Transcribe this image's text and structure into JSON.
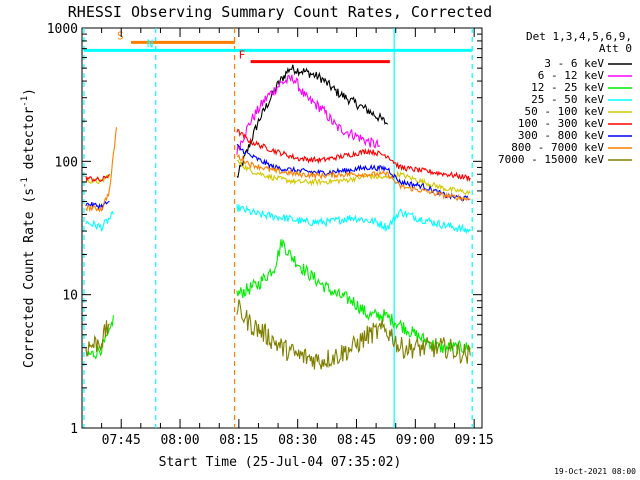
{
  "chart_data": {
    "type": "line",
    "title": "RHESSI Observing Summary Count Rates, Corrected",
    "xlabel": "Start Time (25-Jul-04 07:35:02)",
    "ylabel_main": "Corrected Count Rate (s",
    "ylabel_sup1": "-1",
    "ylabel_mid": " detector",
    "ylabel_sup2": "-1",
    "ylabel_end": ")",
    "y_scale": "log",
    "ylim": [
      1,
      1000
    ],
    "xlim_minutes": [
      7.0,
      101.0
    ],
    "x_ticks": [
      {
        "label": "07:45",
        "minute": 45
      },
      {
        "label": "08:00",
        "minute": 60
      },
      {
        "label": "08:15",
        "minute": 75
      },
      {
        "label": "08:30",
        "minute": 90
      },
      {
        "label": "08:45",
        "minute": 105
      },
      {
        "label": "09:00",
        "minute": 120
      },
      {
        "label": "09:15",
        "minute": 135
      }
    ],
    "x_origin_minute": 35.033,
    "y_ticks": [
      {
        "label": "1",
        "value": 1
      },
      {
        "label": "10",
        "value": 10
      },
      {
        "label": "100",
        "value": 100
      },
      {
        "label": "1000",
        "value": 1000
      }
    ],
    "legend": {
      "title_line1": "Det 1,3,4,5,6,9,",
      "title_line2": "Att 0",
      "placement": "outside-right",
      "entries": [
        {
          "label": "3 - 6 keV",
          "color": "#000000"
        },
        {
          "label": "6 - 12 keV",
          "color": "#ff00ff"
        },
        {
          "label": "12 - 25 keV",
          "color": "#00ee00"
        },
        {
          "label": "25 - 50 keV",
          "color": "#00ffff"
        },
        {
          "label": "50 - 100 keV",
          "color": "#d4c800"
        },
        {
          "label": "100 - 300 keV",
          "color": "#ff0000"
        },
        {
          "label": "300 - 800 keV",
          "color": "#0000ff"
        },
        {
          "label": "800 - 7000 keV",
          "color": "#ff8000"
        },
        {
          "label": "7000 - 15000 keV",
          "color": "#808000"
        }
      ]
    },
    "annotations": [
      {
        "label": "S",
        "color": "#ff8000",
        "x_start": 47.5,
        "x_end": 74.0,
        "y": 780
      },
      {
        "label": "N",
        "color": "#00ffff",
        "x_start": 35.5,
        "x_end": 134.5,
        "y": 680
      },
      {
        "label": "F",
        "color": "#ff0000",
        "x_start": 78.0,
        "x_end": 113.5,
        "y": 560
      }
    ],
    "vlines": [
      {
        "minute": 35.5,
        "color": "#00ffff",
        "style": "dashed"
      },
      {
        "minute": 53.8,
        "color": "#00ffff",
        "style": "dashed"
      },
      {
        "minute": 73.9,
        "color": "#ff8000",
        "style": "dashed"
      },
      {
        "minute": 114.6,
        "color": "#00ffff",
        "style": "solid"
      },
      {
        "minute": 134.5,
        "color": "#00ffff",
        "style": "dashed"
      }
    ],
    "series": [
      {
        "name": "3 - 6 keV",
        "color": "#000000",
        "noise": 0.035,
        "points": [
          [
            74.5,
            75
          ],
          [
            80,
            200
          ],
          [
            85,
            380
          ],
          [
            88,
            500
          ],
          [
            92,
            470
          ],
          [
            96,
            420
          ],
          [
            100,
            330
          ],
          [
            104,
            280
          ],
          [
            108,
            240
          ],
          [
            111,
            210
          ],
          [
            113,
            190
          ]
        ]
      },
      {
        "name": "6 - 12 keV",
        "color": "#ff00ff",
        "noise": 0.04,
        "points": [
          [
            74.5,
            120
          ],
          [
            78,
            200
          ],
          [
            82,
            300
          ],
          [
            86,
            390
          ],
          [
            89,
            420
          ],
          [
            92,
            300
          ],
          [
            96,
            250
          ],
          [
            100,
            180
          ],
          [
            104,
            160
          ],
          [
            108,
            140
          ],
          [
            111,
            130
          ]
        ]
      },
      {
        "name": "12 - 25 keV",
        "color": "#00ee00",
        "noise": 0.05,
        "points": [
          [
            36,
            3.5
          ],
          [
            38,
            3.6
          ],
          [
            40,
            4
          ],
          [
            42,
            5
          ],
          [
            43,
            7
          ],
          [
            74.5,
            10
          ],
          [
            80,
            12
          ],
          [
            84,
            16
          ],
          [
            86,
            25
          ],
          [
            88,
            20
          ],
          [
            92,
            15
          ],
          [
            96,
            12
          ],
          [
            100,
            10
          ],
          [
            104,
            9
          ],
          [
            108,
            7
          ],
          [
            112,
            7
          ],
          [
            116,
            6
          ],
          [
            120,
            5
          ],
          [
            126,
            4
          ],
          [
            134,
            4
          ]
        ]
      },
      {
        "name": "25 - 50 keV",
        "color": "#00ffff",
        "noise": 0.03,
        "points": [
          [
            36,
            35
          ],
          [
            40,
            32
          ],
          [
            43,
            40
          ],
          [
            74.5,
            45
          ],
          [
            80,
            40
          ],
          [
            86,
            38
          ],
          [
            92,
            35
          ],
          [
            98,
            35
          ],
          [
            104,
            38
          ],
          [
            110,
            35
          ],
          [
            113,
            32
          ],
          [
            116,
            42
          ],
          [
            120,
            38
          ],
          [
            126,
            34
          ],
          [
            134,
            30
          ]
        ]
      },
      {
        "name": "50 - 100 keV",
        "color": "#d4c800",
        "noise": 0.02,
        "points": [
          [
            36,
            72
          ],
          [
            40,
            70
          ],
          [
            42,
            80
          ],
          [
            74.5,
            100
          ],
          [
            78,
            85
          ],
          [
            84,
            75
          ],
          [
            90,
            70
          ],
          [
            96,
            70
          ],
          [
            102,
            72
          ],
          [
            108,
            78
          ],
          [
            112,
            75
          ],
          [
            116,
            80
          ],
          [
            122,
            70
          ],
          [
            128,
            62
          ],
          [
            134,
            58
          ]
        ]
      },
      {
        "name": "100 - 300 keV",
        "color": "#ff0000",
        "noise": 0.02,
        "points": [
          [
            36,
            75
          ],
          [
            40,
            72
          ],
          [
            42,
            80
          ],
          [
            74.5,
            170
          ],
          [
            78,
            140
          ],
          [
            84,
            120
          ],
          [
            90,
            105
          ],
          [
            96,
            102
          ],
          [
            102,
            110
          ],
          [
            108,
            120
          ],
          [
            113,
            110
          ],
          [
            116,
            90
          ],
          [
            122,
            85
          ],
          [
            128,
            80
          ],
          [
            134,
            75
          ]
        ]
      },
      {
        "name": "300 - 800 keV",
        "color": "#0000ff",
        "noise": 0.02,
        "points": [
          [
            36,
            48
          ],
          [
            40,
            46
          ],
          [
            42,
            50
          ],
          [
            74.5,
            130
          ],
          [
            78,
            110
          ],
          [
            84,
            90
          ],
          [
            90,
            85
          ],
          [
            96,
            82
          ],
          [
            102,
            85
          ],
          [
            108,
            90
          ],
          [
            113,
            88
          ],
          [
            116,
            70
          ],
          [
            122,
            65
          ],
          [
            128,
            55
          ],
          [
            134,
            52
          ]
        ]
      },
      {
        "name": "800 - 7000 keV",
        "color": "#ff8000",
        "noise": 0.02,
        "points": [
          [
            36,
            45
          ],
          [
            40,
            44
          ],
          [
            42,
            60
          ],
          [
            43.8,
            180
          ],
          [
            74.5,
            110
          ],
          [
            78,
            95
          ],
          [
            84,
            85
          ],
          [
            90,
            80
          ],
          [
            96,
            78
          ],
          [
            102,
            80
          ],
          [
            108,
            80
          ],
          [
            113,
            80
          ],
          [
            116,
            65
          ],
          [
            122,
            60
          ],
          [
            128,
            55
          ],
          [
            134,
            52
          ]
        ]
      },
      {
        "name": "7000 - 15000 keV",
        "color": "#808000",
        "noise": 0.08,
        "points": [
          [
            36,
            4
          ],
          [
            40,
            4.5
          ],
          [
            42,
            6
          ],
          [
            74.5,
            8
          ],
          [
            78,
            6
          ],
          [
            82,
            5
          ],
          [
            86,
            4
          ],
          [
            90,
            3.5
          ],
          [
            96,
            3.2
          ],
          [
            100,
            3.5
          ],
          [
            104,
            4
          ],
          [
            108,
            5
          ],
          [
            112,
            5.5
          ],
          [
            114,
            5
          ],
          [
            116,
            4
          ],
          [
            122,
            4
          ],
          [
            128,
            4
          ],
          [
            134,
            3.5
          ]
        ]
      }
    ]
  },
  "footer": {
    "date_stamp": "19-Oct-2021 08:00"
  }
}
